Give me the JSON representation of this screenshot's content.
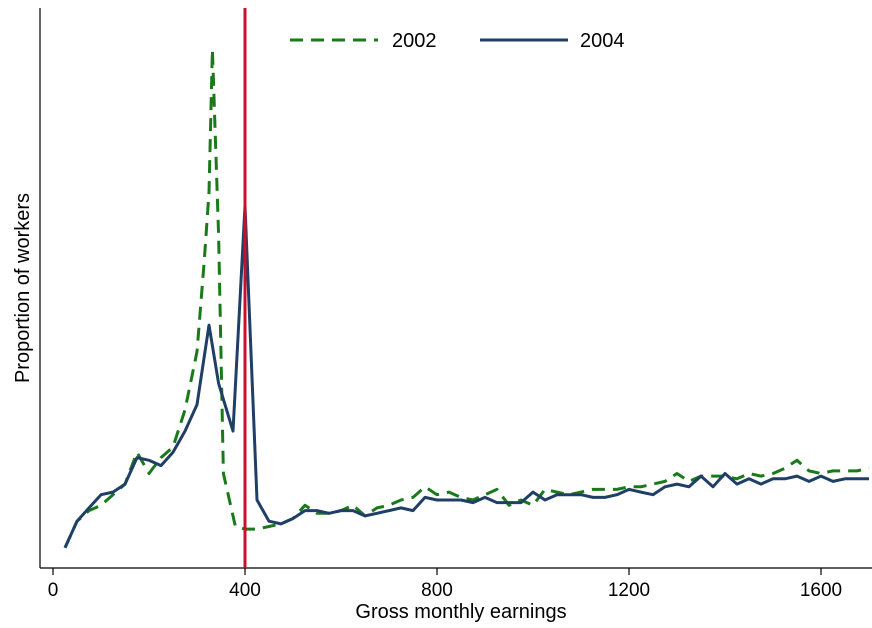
{
  "chart_data": {
    "type": "line",
    "title": "",
    "xlabel": "Gross monthly earnings",
    "ylabel": "Proportion of workers",
    "xlim": [
      0,
      1700
    ],
    "xticks": [
      0,
      400,
      800,
      1200,
      1600
    ],
    "xtick_labels": [
      "0",
      "400",
      "800",
      "1200",
      "1600"
    ],
    "yticks_shown": false,
    "grid": false,
    "legend_position": "top-center",
    "reference_line": {
      "x": 400,
      "color": "#c8102e"
    },
    "series": [
      {
        "name": "2002",
        "color": "#1a7a1a",
        "style": "dashed",
        "points": [
          [
            25,
            0.01
          ],
          [
            50,
            0.06
          ],
          [
            75,
            0.08
          ],
          [
            100,
            0.09
          ],
          [
            125,
            0.11
          ],
          [
            150,
            0.13
          ],
          [
            175,
            0.19
          ],
          [
            200,
            0.15
          ],
          [
            225,
            0.18
          ],
          [
            250,
            0.2
          ],
          [
            275,
            0.27
          ],
          [
            300,
            0.38
          ],
          [
            315,
            0.55
          ],
          [
            325,
            0.68
          ],
          [
            332,
            0.95
          ],
          [
            345,
            0.6
          ],
          [
            355,
            0.15
          ],
          [
            380,
            0.05
          ],
          [
            400,
            0.045
          ],
          [
            425,
            0.045
          ],
          [
            450,
            0.05
          ],
          [
            475,
            0.055
          ],
          [
            500,
            0.065
          ],
          [
            525,
            0.09
          ],
          [
            550,
            0.075
          ],
          [
            575,
            0.075
          ],
          [
            600,
            0.08
          ],
          [
            625,
            0.09
          ],
          [
            650,
            0.07
          ],
          [
            675,
            0.085
          ],
          [
            700,
            0.09
          ],
          [
            725,
            0.1
          ],
          [
            750,
            0.105
          ],
          [
            775,
            0.125
          ],
          [
            800,
            0.11
          ],
          [
            825,
            0.115
          ],
          [
            850,
            0.105
          ],
          [
            875,
            0.1
          ],
          [
            900,
            0.11
          ],
          [
            925,
            0.12
          ],
          [
            950,
            0.09
          ],
          [
            975,
            0.1
          ],
          [
            1000,
            0.09
          ],
          [
            1025,
            0.12
          ],
          [
            1050,
            0.115
          ],
          [
            1075,
            0.11
          ],
          [
            1100,
            0.115
          ],
          [
            1125,
            0.12
          ],
          [
            1150,
            0.12
          ],
          [
            1175,
            0.12
          ],
          [
            1200,
            0.125
          ],
          [
            1225,
            0.125
          ],
          [
            1250,
            0.13
          ],
          [
            1275,
            0.135
          ],
          [
            1300,
            0.15
          ],
          [
            1325,
            0.135
          ],
          [
            1350,
            0.145
          ],
          [
            1375,
            0.145
          ],
          [
            1400,
            0.145
          ],
          [
            1425,
            0.14
          ],
          [
            1450,
            0.15
          ],
          [
            1475,
            0.145
          ],
          [
            1500,
            0.15
          ],
          [
            1525,
            0.16
          ],
          [
            1550,
            0.175
          ],
          [
            1575,
            0.155
          ],
          [
            1600,
            0.15
          ],
          [
            1625,
            0.155
          ],
          [
            1650,
            0.155
          ],
          [
            1675,
            0.155
          ],
          [
            1700,
            0.16
          ]
        ]
      },
      {
        "name": "2004",
        "color": "#1f3f66",
        "style": "solid",
        "points": [
          [
            25,
            0.01
          ],
          [
            50,
            0.06
          ],
          [
            75,
            0.085
          ],
          [
            100,
            0.11
          ],
          [
            125,
            0.115
          ],
          [
            150,
            0.13
          ],
          [
            175,
            0.18
          ],
          [
            200,
            0.175
          ],
          [
            225,
            0.165
          ],
          [
            250,
            0.19
          ],
          [
            275,
            0.23
          ],
          [
            300,
            0.28
          ],
          [
            325,
            0.43
          ],
          [
            345,
            0.32
          ],
          [
            375,
            0.23
          ],
          [
            400,
            0.655
          ],
          [
            425,
            0.1
          ],
          [
            450,
            0.06
          ],
          [
            475,
            0.055
          ],
          [
            500,
            0.065
          ],
          [
            525,
            0.08
          ],
          [
            550,
            0.08
          ],
          [
            575,
            0.075
          ],
          [
            600,
            0.08
          ],
          [
            625,
            0.08
          ],
          [
            650,
            0.07
          ],
          [
            675,
            0.075
          ],
          [
            700,
            0.08
          ],
          [
            725,
            0.085
          ],
          [
            750,
            0.08
          ],
          [
            775,
            0.105
          ],
          [
            800,
            0.1
          ],
          [
            825,
            0.1
          ],
          [
            850,
            0.1
          ],
          [
            875,
            0.095
          ],
          [
            900,
            0.105
          ],
          [
            925,
            0.095
          ],
          [
            950,
            0.095
          ],
          [
            975,
            0.095
          ],
          [
            1000,
            0.115
          ],
          [
            1025,
            0.1
          ],
          [
            1050,
            0.11
          ],
          [
            1075,
            0.11
          ],
          [
            1100,
            0.11
          ],
          [
            1125,
            0.105
          ],
          [
            1150,
            0.105
          ],
          [
            1175,
            0.11
          ],
          [
            1200,
            0.12
          ],
          [
            1225,
            0.115
          ],
          [
            1250,
            0.11
          ],
          [
            1275,
            0.125
          ],
          [
            1300,
            0.13
          ],
          [
            1325,
            0.125
          ],
          [
            1350,
            0.145
          ],
          [
            1375,
            0.125
          ],
          [
            1400,
            0.15
          ],
          [
            1425,
            0.13
          ],
          [
            1450,
            0.14
          ],
          [
            1475,
            0.13
          ],
          [
            1500,
            0.14
          ],
          [
            1525,
            0.14
          ],
          [
            1550,
            0.145
          ],
          [
            1575,
            0.135
          ],
          [
            1600,
            0.145
          ],
          [
            1625,
            0.135
          ],
          [
            1650,
            0.14
          ],
          [
            1675,
            0.14
          ],
          [
            1700,
            0.14
          ]
        ]
      }
    ]
  }
}
